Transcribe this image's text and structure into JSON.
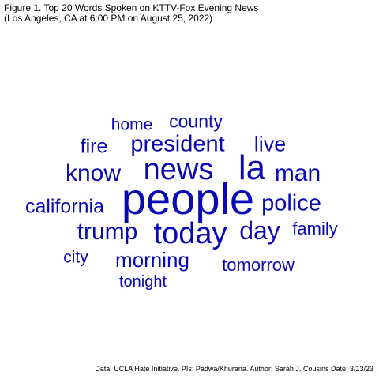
{
  "figure": {
    "title_line1": "Figure 1. Top 20 Words Spoken on KTTV-Fox Evening News",
    "title_line2": "(Los Angeles, CA at 6:00 PM on August 25, 2022)",
    "caption": "Data: UCLA Hate Initiative. PIs: Padwa/Khurana. Author: Sarah J. Cousins Date: 3/13/23"
  },
  "colors": {
    "word_color": "#0a0ab4",
    "text": "#000000",
    "background": "#ffffff"
  },
  "words": [
    {
      "text": "people"
    },
    {
      "text": "news"
    },
    {
      "text": "la"
    },
    {
      "text": "today"
    },
    {
      "text": "president"
    },
    {
      "text": "know"
    },
    {
      "text": "day"
    },
    {
      "text": "trump"
    },
    {
      "text": "man"
    },
    {
      "text": "police"
    },
    {
      "text": "california"
    },
    {
      "text": "morning"
    },
    {
      "text": "live"
    },
    {
      "text": "fire"
    },
    {
      "text": "county"
    },
    {
      "text": "home"
    },
    {
      "text": "family"
    },
    {
      "text": "tomorrow"
    },
    {
      "text": "city"
    },
    {
      "text": "tonight"
    }
  ]
}
